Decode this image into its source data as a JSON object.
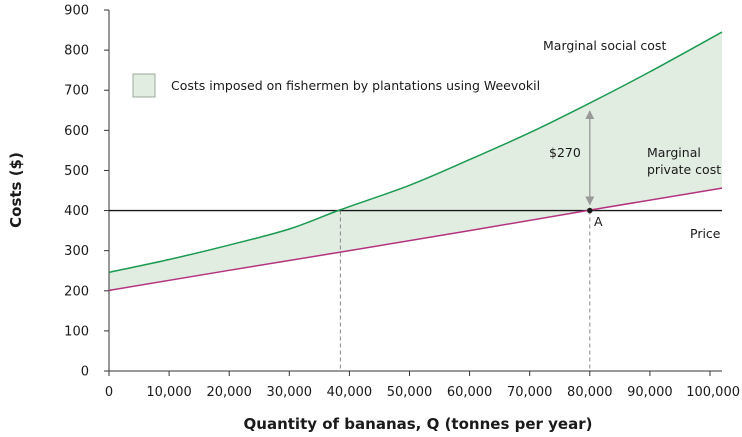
{
  "chart_data": {
    "type": "line",
    "xlabel": "Quantity of bananas, Q (tonnes per year)",
    "ylabel": "Costs ($)",
    "xlim": [
      0,
      102000
    ],
    "ylim": [
      0,
      900
    ],
    "x_ticks": [
      0,
      10000,
      20000,
      30000,
      40000,
      50000,
      60000,
      70000,
      80000,
      90000,
      100000
    ],
    "x_tick_labels": [
      "0",
      "10,000",
      "20,000",
      "30,000",
      "40,000",
      "50,000",
      "60,000",
      "70,000",
      "80,000",
      "90,000",
      "100,000"
    ],
    "y_ticks": [
      0,
      100,
      200,
      300,
      400,
      500,
      600,
      700,
      800,
      900
    ],
    "y_tick_labels": [
      "0",
      "100",
      "200",
      "300",
      "400",
      "500",
      "600",
      "700",
      "800",
      "900"
    ],
    "grid": false,
    "series": [
      {
        "name": "Marginal social cost",
        "color": "#1a9a50",
        "x": [
          0,
          10000,
          20000,
          30000,
          38500,
          50000,
          60000,
          70000,
          80000,
          90000,
          102000
        ],
        "y": [
          246,
          278,
          314,
          354,
          402,
          463,
          527,
          594,
          668,
          746,
          845
        ]
      },
      {
        "name": "Marginal private cost",
        "color": "#b3337f",
        "x": [
          0,
          20000,
          40000,
          60000,
          80000,
          102000
        ],
        "y": [
          201,
          251,
          300,
          350,
          401,
          456
        ]
      },
      {
        "name": "Price",
        "color": "#1a1a1a",
        "x": [
          0,
          102000
        ],
        "y": [
          400,
          400
        ]
      }
    ],
    "shaded_region": {
      "label": "Costs imposed on fishermen by plantations using Weevokil",
      "color": "#e2ede2"
    },
    "annotations": {
      "point_label": "A",
      "point": [
        80000,
        400
      ],
      "gap_label": "$270",
      "gap_x": 80000,
      "gap_range": [
        400,
        668
      ],
      "dashed_x": [
        38500,
        80000
      ],
      "msc_label": "Marginal social cost",
      "mpc_label_line1": "Marginal",
      "mpc_label_line2": "private cost",
      "price_label": "Price"
    }
  }
}
